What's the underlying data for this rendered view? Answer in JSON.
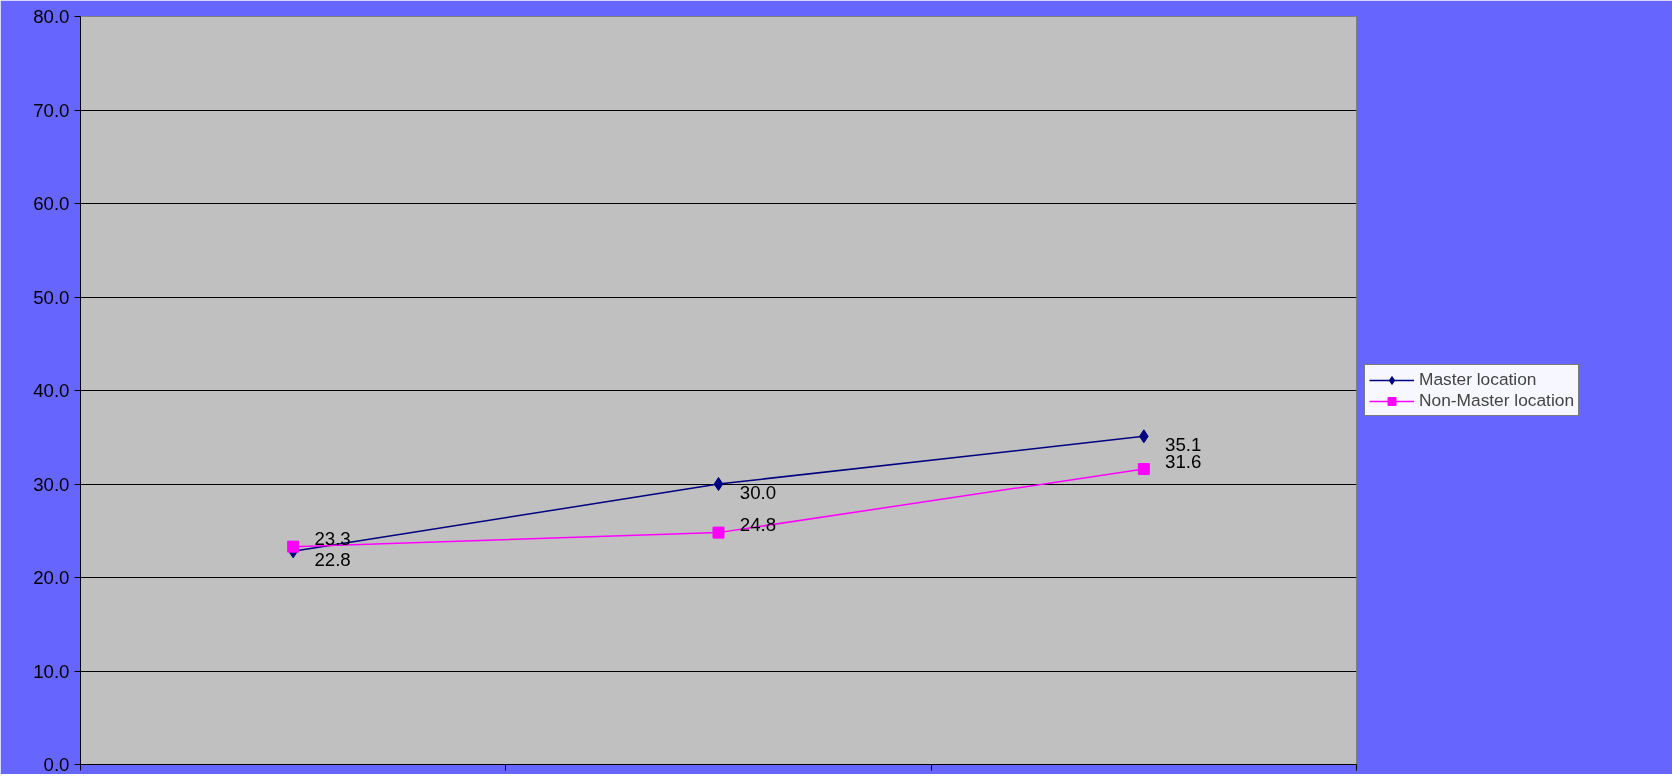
{
  "chart_data": {
    "type": "line",
    "categories": [
      null,
      null,
      null
    ],
    "series": [
      {
        "name": "Master location",
        "color": "#000080",
        "marker": "diamond",
        "values": [
          22.8,
          30.0,
          35.1
        ],
        "value_labels": [
          "22.8",
          "30.0",
          "35.1"
        ]
      },
      {
        "name": "Non-Master location",
        "color": "#ff00ff",
        "marker": "square",
        "values": [
          23.3,
          24.8,
          31.6
        ],
        "value_labels": [
          "23.3",
          "24.8",
          "31.6"
        ]
      }
    ],
    "ylim": [
      0,
      80
    ],
    "yticks": [
      {
        "value": 0,
        "label": "0.0"
      },
      {
        "value": 10,
        "label": "10.0"
      },
      {
        "value": 20,
        "label": "20.0"
      },
      {
        "value": 30,
        "label": "30.0"
      },
      {
        "value": 40,
        "label": "40.0"
      },
      {
        "value": 50,
        "label": "50.0"
      },
      {
        "value": 60,
        "label": "60.0"
      },
      {
        "value": 70,
        "label": "70.0"
      },
      {
        "value": 80,
        "label": "80.0"
      }
    ],
    "grid": "y",
    "legend": "right",
    "data_labels": true,
    "line_style": "solid"
  }
}
